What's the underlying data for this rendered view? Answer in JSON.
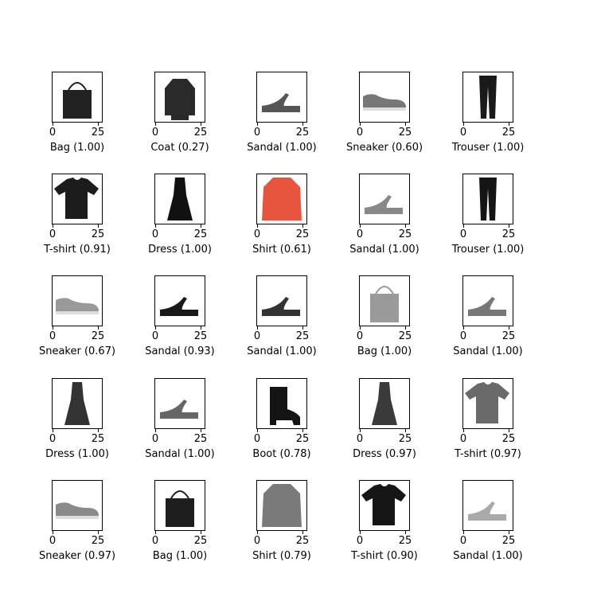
{
  "chart_data": {
    "type": "image-grid",
    "rows": 5,
    "cols": 5,
    "x_ticks": [
      "0",
      "25"
    ],
    "panels": [
      {
        "label": "Bag",
        "score": "1.00",
        "caption": "Bag (1.00)",
        "icon": "bag-icon",
        "color": "#222222"
      },
      {
        "label": "Coat",
        "score": "0.27",
        "caption": "Coat (0.27)",
        "icon": "coat-icon",
        "color": "#2a2a2a"
      },
      {
        "label": "Sandal",
        "score": "1.00",
        "caption": "Sandal (1.00)",
        "icon": "sandal-icon",
        "color": "#555555"
      },
      {
        "label": "Sneaker",
        "score": "0.60",
        "caption": "Sneaker (0.60)",
        "icon": "sneaker-icon",
        "color": "#777777"
      },
      {
        "label": "Trouser",
        "score": "1.00",
        "caption": "Trouser (1.00)",
        "icon": "trouser-icon",
        "color": "#1a1a1a"
      },
      {
        "label": "T-shirt",
        "score": "0.91",
        "caption": "T-shirt (0.91)",
        "icon": "tshirt-icon",
        "color": "#1c1c1c"
      },
      {
        "label": "Dress",
        "score": "1.00",
        "caption": "Dress (1.00)",
        "icon": "dress-icon",
        "color": "#111111"
      },
      {
        "label": "Shirt",
        "score": "0.61",
        "caption": "Shirt (0.61)",
        "icon": "shirt-icon",
        "color": "#e8553f"
      },
      {
        "label": "Sandal",
        "score": "1.00",
        "caption": "Sandal (1.00)",
        "icon": "sandal-icon",
        "color": "#888888"
      },
      {
        "label": "Trouser",
        "score": "1.00",
        "caption": "Trouser (1.00)",
        "icon": "trouser-icon",
        "color": "#151515"
      },
      {
        "label": "Sneaker",
        "score": "0.67",
        "caption": "Sneaker (0.67)",
        "icon": "sneaker-icon",
        "color": "#999999"
      },
      {
        "label": "Sandal",
        "score": "0.93",
        "caption": "Sandal (0.93)",
        "icon": "sandal-icon",
        "color": "#181818"
      },
      {
        "label": "Sandal",
        "score": "1.00",
        "caption": "Sandal (1.00)",
        "icon": "sandal-icon",
        "color": "#333333"
      },
      {
        "label": "Bag",
        "score": "1.00",
        "caption": "Bag (1.00)",
        "icon": "bag-icon",
        "color": "#9a9a9a"
      },
      {
        "label": "Sandal",
        "score": "1.00",
        "caption": "Sandal (1.00)",
        "icon": "sandal-icon",
        "color": "#777777"
      },
      {
        "label": "Dress",
        "score": "1.00",
        "caption": "Dress (1.00)",
        "icon": "dress-icon",
        "color": "#333333"
      },
      {
        "label": "Sandal",
        "score": "1.00",
        "caption": "Sandal (1.00)",
        "icon": "sandal-icon",
        "color": "#666666"
      },
      {
        "label": "Boot",
        "score": "0.78",
        "caption": "Boot (0.78)",
        "icon": "boot-icon",
        "color": "#141414"
      },
      {
        "label": "Dress",
        "score": "0.97",
        "caption": "Dress (0.97)",
        "icon": "dress-icon",
        "color": "#3a3a3a"
      },
      {
        "label": "T-shirt",
        "score": "0.97",
        "caption": "T-shirt (0.97)",
        "icon": "tshirt-icon",
        "color": "#6a6a6a"
      },
      {
        "label": "Sneaker",
        "score": "0.97",
        "caption": "Sneaker (0.97)",
        "icon": "sneaker-icon",
        "color": "#8a8a8a"
      },
      {
        "label": "Bag",
        "score": "1.00",
        "caption": "Bag (1.00)",
        "icon": "bag-icon",
        "color": "#1e1e1e"
      },
      {
        "label": "Shirt",
        "score": "0.79",
        "caption": "Shirt (0.79)",
        "icon": "shirt-icon",
        "color": "#7a7a7a"
      },
      {
        "label": "T-shirt",
        "score": "0.90",
        "caption": "T-shirt (0.90)",
        "icon": "tshirt-icon",
        "color": "#161616"
      },
      {
        "label": "Sandal",
        "score": "1.00",
        "caption": "Sandal (1.00)",
        "icon": "sandal-icon",
        "color": "#aaaaaa"
      }
    ]
  }
}
